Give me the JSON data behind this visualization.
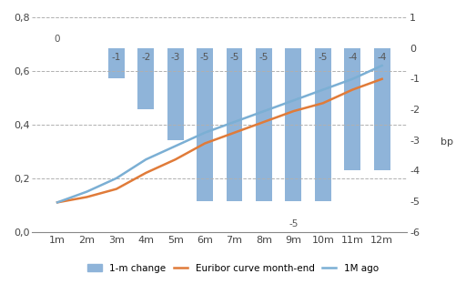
{
  "categories": [
    "1m",
    "2m",
    "3m",
    "4m",
    "5m",
    "6m",
    "7m",
    "8m",
    "9m",
    "10m",
    "11m",
    "12m"
  ],
  "bar_values": [
    0,
    0,
    -1,
    -2,
    -3,
    -5,
    -5,
    -5,
    -5,
    -5,
    -4,
    -4
  ],
  "euribor_curve": [
    0.11,
    0.13,
    0.16,
    0.22,
    0.27,
    0.33,
    0.37,
    0.41,
    0.45,
    0.48,
    0.53,
    0.57
  ],
  "one_m_ago": [
    0.11,
    0.15,
    0.2,
    0.27,
    0.32,
    0.37,
    0.41,
    0.45,
    0.49,
    0.53,
    0.57,
    0.62
  ],
  "bar_color": "#8fb4d9",
  "euribor_color": "#e07b39",
  "one_m_ago_color": "#7bafd4",
  "left_ylim": [
    0.0,
    0.8
  ],
  "left_yticks": [
    0.0,
    0.2,
    0.4,
    0.6,
    0.8
  ],
  "left_yticklabels": [
    "0,0",
    "0,2",
    "0,4",
    "0,6",
    "0,8"
  ],
  "right_ylim": [
    -6,
    1
  ],
  "right_yticks": [
    -6,
    -5,
    -4,
    -3,
    -2,
    -1,
    0,
    1
  ],
  "right_yticklabels": [
    "-6",
    "-5",
    "-4",
    "-3",
    "-2",
    "-1",
    "0",
    "1"
  ],
  "right_label": "bp",
  "background_color": "#d9d9d9",
  "grid_color": "#b8b8b8",
  "bar_width": 0.55,
  "legend_labels": [
    "1-m change",
    "Euribor curve month-end",
    "1M ago"
  ],
  "bar_label_values": [
    0,
    null,
    -1,
    -2,
    -3,
    -5,
    -5,
    -5,
    -5,
    -5,
    -4,
    -4
  ],
  "bar_label_positions_top": [
    true,
    false,
    false,
    false,
    false,
    false,
    false,
    false,
    false,
    false,
    false,
    false
  ],
  "bar_label_below_xaxis": [
    false,
    false,
    false,
    false,
    false,
    false,
    false,
    false,
    true,
    false,
    false,
    false
  ]
}
